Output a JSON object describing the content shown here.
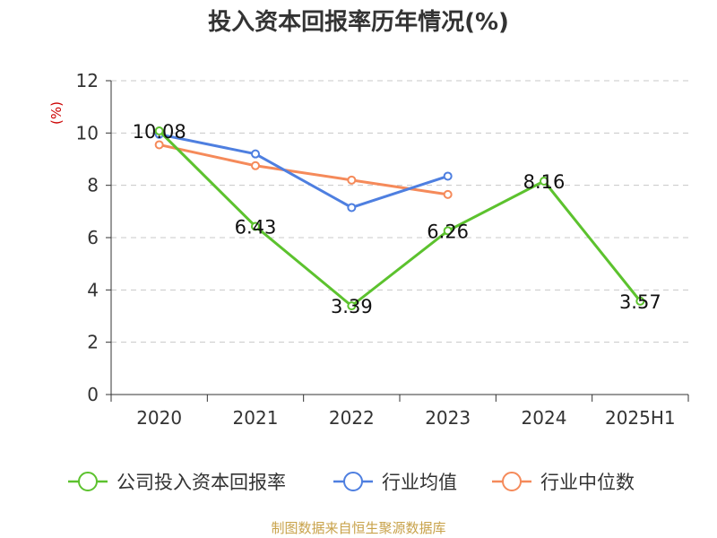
{
  "title": "投入资本回报率历年情况(%)",
  "unit": "(%)",
  "source": "制图数据来自恒生聚源数据库",
  "chart_data": {
    "type": "line",
    "title": "投入资本回报率历年情况(%)",
    "ylabel": "(%)",
    "xlabel": "",
    "categories": [
      "2020",
      "2021",
      "2022",
      "2023",
      "2024",
      "2025H1"
    ],
    "ylim": [
      0,
      12
    ],
    "yticks": [
      0,
      2,
      4,
      6,
      8,
      10,
      12
    ],
    "grid": true,
    "legend_position": "bottom",
    "series": [
      {
        "name": "公司投入资本回报率",
        "color": "#5cc22e",
        "values": [
          10.08,
          6.43,
          3.39,
          6.26,
          8.16,
          3.57
        ],
        "labels": [
          "10.08",
          "6.43",
          "3.39",
          "6.26",
          "8.16",
          "3.57"
        ]
      },
      {
        "name": "行业均值",
        "color": "#4e7fe0",
        "values": [
          9.95,
          9.2,
          7.15,
          8.35,
          null,
          null
        ]
      },
      {
        "name": "行业中位数",
        "color": "#f58a5a",
        "values": [
          9.55,
          8.75,
          8.2,
          7.65,
          null,
          null
        ]
      }
    ]
  }
}
